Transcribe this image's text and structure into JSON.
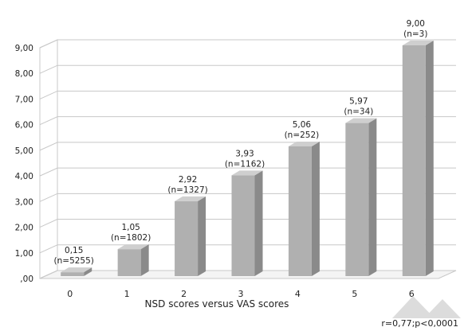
{
  "chart_data": {
    "type": "bar",
    "categories": [
      "0",
      "1",
      "2",
      "3",
      "4",
      "5",
      "6"
    ],
    "values": [
      0.15,
      1.05,
      2.92,
      3.93,
      5.06,
      5.97,
      9.0
    ],
    "value_labels": [
      "0,15",
      "1,05",
      "2,92",
      "3,93",
      "5,06",
      "5,97",
      "9,00"
    ],
    "n_labels": [
      "(n=5255)",
      "(n=1802)",
      "(n=1327)",
      "(n=1162)",
      "(n=252)",
      "(n=34)",
      "(n=3)"
    ],
    "ylim": [
      0,
      9
    ],
    "y_ticks": [
      ",00",
      "1,00",
      "2,00",
      "3,00",
      "4,00",
      "5,00",
      "6,00",
      "7,00",
      "8,00",
      "9,00"
    ],
    "xlabel": "NSD scores versus VAS scores",
    "ylabel": "",
    "title": "",
    "annotation": "r=0,77;p<0,0001",
    "grid": true,
    "legend": "none",
    "style": "3d-column",
    "colors": {
      "bar_front": "#b0b0b0",
      "bar_side": "#8a8a8a",
      "bar_top": "#cfcfcf",
      "grid": "#c8c8c8",
      "axis_text": "#222222"
    }
  }
}
